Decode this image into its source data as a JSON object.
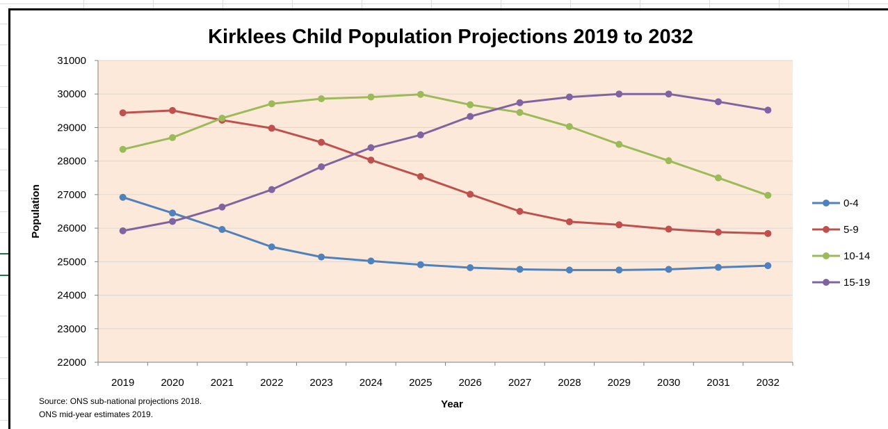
{
  "chart_data": {
    "type": "line",
    "title": "Kirklees Child Population Projections 2019 to 2032",
    "xlabel": "Year",
    "ylabel": "Population",
    "x": [
      "2019",
      "2020",
      "2021",
      "2022",
      "2023",
      "2024",
      "2025",
      "2026",
      "2027",
      "2028",
      "2029",
      "2030",
      "2031",
      "2032"
    ],
    "ylim": [
      22000,
      31000
    ],
    "yticks": [
      22000,
      23000,
      24000,
      25000,
      26000,
      27000,
      28000,
      29000,
      30000,
      31000
    ],
    "grid": true,
    "legend_position": "right",
    "plot_background": "#FDE9D9",
    "series": [
      {
        "name": "0-4",
        "color": "#4F81BD",
        "values": [
          26920,
          26450,
          25960,
          25440,
          25140,
          25020,
          24910,
          24820,
          24770,
          24750,
          24750,
          24770,
          24830,
          24880
        ]
      },
      {
        "name": "5-9",
        "color": "#C0504D",
        "values": [
          29440,
          29510,
          29220,
          28980,
          28560,
          28030,
          27540,
          27010,
          26500,
          26190,
          26100,
          25970,
          25880,
          25840
        ]
      },
      {
        "name": "10-14",
        "color": "#9BBB59",
        "values": [
          28350,
          28700,
          29280,
          29710,
          29860,
          29910,
          29990,
          29680,
          29450,
          29030,
          28500,
          28010,
          27500,
          26980
        ]
      },
      {
        "name": "15-19",
        "color": "#8064A2",
        "values": [
          25920,
          26200,
          26630,
          27150,
          27830,
          28400,
          28780,
          29330,
          29740,
          29910,
          30000,
          30000,
          29770,
          29520
        ]
      }
    ],
    "source": [
      "Source: ONS sub-national projections 2018.",
      "ONS mid-year estimates 2019."
    ]
  }
}
